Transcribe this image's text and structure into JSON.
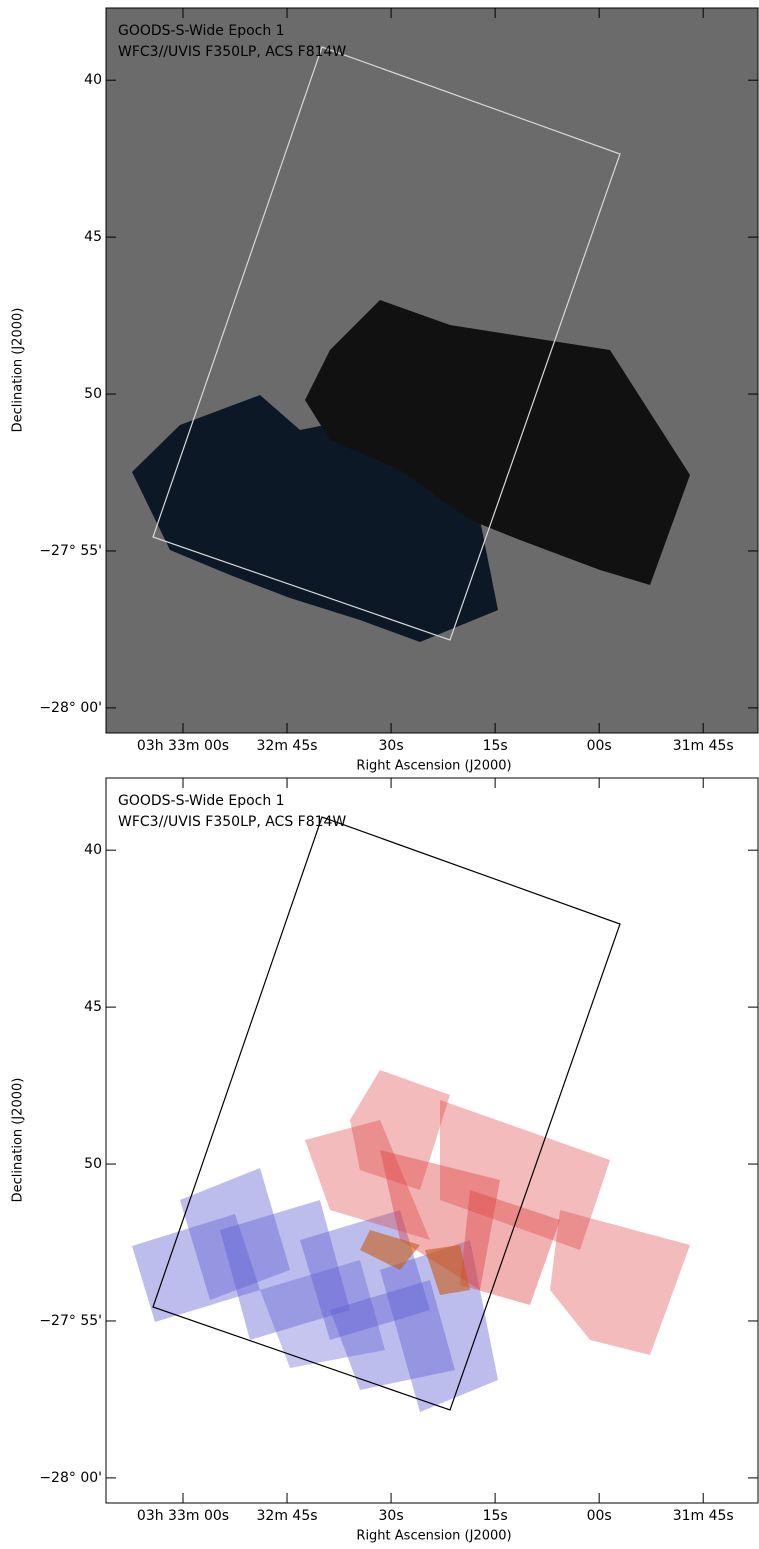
{
  "chart_data": [
    {
      "type": "footprint",
      "title": "GOODS-S-Wide Epoch 1",
      "subtitle": "WFC3//UVIS F350LP, ACS F814W",
      "xlabel": "Right Ascension (J2000)",
      "ylabel": "Declination (J2000)",
      "xlim": [
        131.1,
        37.1
      ],
      "ylim": [
        37.7,
        60.8
      ],
      "xticks": [
        {
          "value": 120,
          "label": "03h 33m 00s"
        },
        {
          "value": 105,
          "label": "32m 45s"
        },
        {
          "value": 90,
          "label": "30s"
        },
        {
          "value": 75,
          "label": "15s"
        },
        {
          "value": 60,
          "label": "00s"
        },
        {
          "value": 45,
          "label": "31m 45s"
        }
      ],
      "yticks": [
        40,
        45,
        50,
        {
          "value": 55,
          "label": "−27° 55'"
        },
        {
          "value": 60,
          "label": "−28° 00'"
        }
      ],
      "background": "#6b6b6b",
      "outline_color": "#d8d8d8"
    },
    {
      "type": "footprint",
      "title": "GOODS-S-Wide Epoch 1",
      "subtitle": "WFC3//UVIS F350LP, ACS F814W",
      "xlabel": "Right Ascension (J2000)",
      "ylabel": "Declination (J2000)",
      "xlim": [
        131.1,
        37.1
      ],
      "ylim": [
        37.7,
        60.8
      ],
      "xticks": [
        {
          "value": 120,
          "label": "03h 33m 00s"
        },
        {
          "value": 105,
          "label": "32m 45s"
        },
        {
          "value": 90,
          "label": "30s"
        },
        {
          "value": 75,
          "label": "15s"
        },
        {
          "value": 60,
          "label": "00s"
        },
        {
          "value": 45,
          "label": "31m 45s"
        }
      ],
      "yticks": [
        40,
        45,
        50,
        {
          "value": 55,
          "label": "−27° 55'"
        },
        {
          "value": 60,
          "label": "−28° 00'"
        }
      ],
      "background": "#ffffff",
      "outline_color": "#000000"
    }
  ]
}
